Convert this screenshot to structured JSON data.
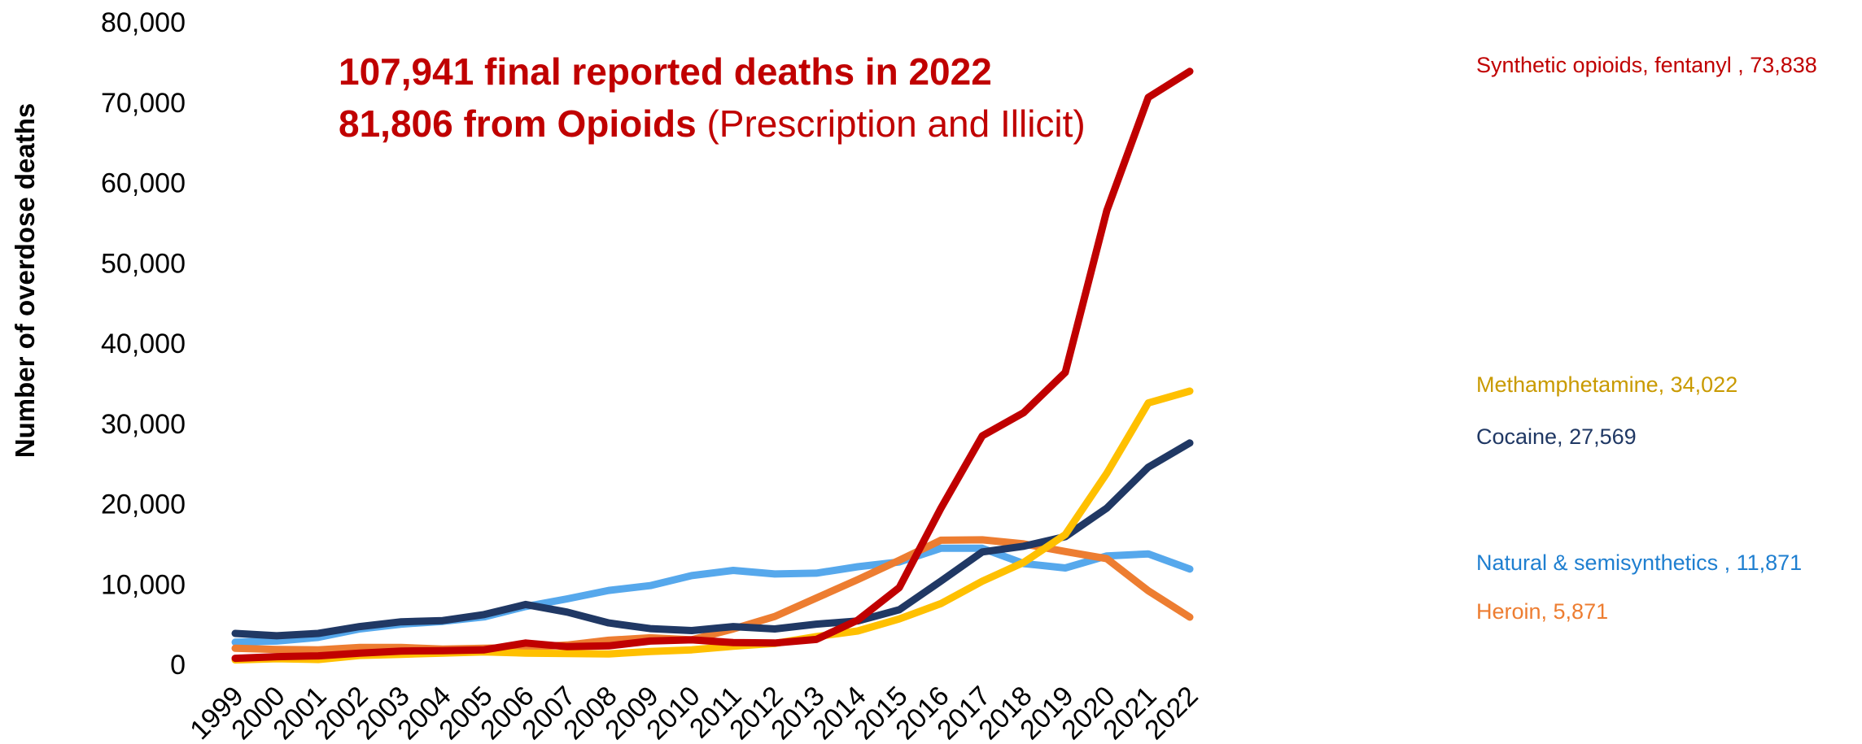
{
  "chart_data": {
    "type": "line",
    "ylabel": "Number of overdose deaths",
    "ylim": [
      0,
      80000
    ],
    "yticks": [
      "0",
      "10,000",
      "20,000",
      "30,000",
      "40,000",
      "50,000",
      "60,000",
      "70,000",
      "80,000"
    ],
    "x": [
      "1999",
      "2000",
      "2001",
      "2002",
      "2003",
      "2004",
      "2005",
      "2006",
      "2007",
      "2008",
      "2009",
      "2010",
      "2011",
      "2012",
      "2013",
      "2014",
      "2015",
      "2016",
      "2017",
      "2018",
      "2019",
      "2020",
      "2021",
      "2022"
    ],
    "annotation": {
      "line1": "107,941 final reported deaths in 2022",
      "line2_bold": "81,806 from Opioids",
      "line2_rest": " (Prescription and Illicit)"
    },
    "grid": false,
    "series": [
      {
        "name": "Natural & semisynthetics",
        "label": "Natural & semisynthetics , 11,871",
        "color": "#56A8EC",
        "label_color": "#1F7FD0",
        "values": [
          2750,
          2900,
          3350,
          4400,
          5000,
          5350,
          5900,
          7200,
          8150,
          9200,
          9800,
          11050,
          11700,
          11250,
          11350,
          12150,
          12750,
          14450,
          14450,
          12550,
          12000,
          13500,
          13750,
          11871
        ]
      },
      {
        "name": "Heroin",
        "label": "Heroin, 5,871",
        "color": "#ED7D31",
        "label_color": "#ED7D31",
        "values": [
          2000,
          1850,
          1800,
          2100,
          2100,
          1900,
          2000,
          2100,
          2400,
          3000,
          3300,
          3050,
          4400,
          5950,
          8250,
          10550,
          12950,
          15450,
          15500,
          15000,
          14050,
          13150,
          9150,
          5871
        ]
      },
      {
        "name": "Cocaine",
        "label": "Cocaine, 27,569",
        "color": "#203864",
        "label_color": "#203864",
        "values": [
          3850,
          3550,
          3850,
          4700,
          5300,
          5450,
          6200,
          7450,
          6500,
          5150,
          4450,
          4200,
          4700,
          4400,
          5000,
          5400,
          6800,
          10350,
          14000,
          14700,
          15900,
          19450,
          24550,
          27569
        ]
      },
      {
        "name": "Methamphetamine",
        "label": "Methamphetamine, 34,022",
        "color": "#FFC000",
        "label_color": "#C99A00",
        "values": [
          550,
          700,
          600,
          1100,
          1250,
          1400,
          1550,
          1400,
          1350,
          1300,
          1600,
          1800,
          2250,
          2600,
          3450,
          4150,
          5650,
          7550,
          10350,
          12700,
          16150,
          23800,
          32550,
          34022
        ]
      },
      {
        "name": "Synthetic opioids, fentanyl",
        "label": "Synthetic opioids, fentanyl , 73,838",
        "color": "#C00000",
        "label_color": "#C00000",
        "values": [
          750,
          950,
          1050,
          1400,
          1650,
          1700,
          1800,
          2650,
          2200,
          2300,
          2900,
          3050,
          2700,
          2650,
          3100,
          5500,
          9550,
          19400,
          28450,
          31350,
          36350,
          56500,
          70600,
          73838
        ]
      }
    ]
  }
}
